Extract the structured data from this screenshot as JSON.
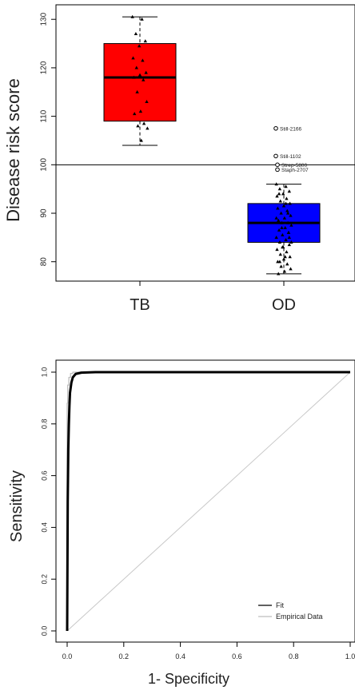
{
  "chart_data": [
    {
      "type": "box",
      "ylabel": "Disease risk score",
      "categories": [
        "TB",
        "OD"
      ],
      "yticks": [
        80,
        90,
        100,
        110,
        120,
        130
      ],
      "ylim": [
        76,
        133
      ],
      "reference_line": 100,
      "boxes": [
        {
          "category": "TB",
          "color": "#ff0000",
          "min": 104,
          "q1": 109,
          "median": 118,
          "q3": 125,
          "max": 130.5,
          "points": [
            130.5,
            130,
            127,
            125.5,
            124.5,
            122,
            121.5,
            120,
            119,
            118.5,
            118,
            117.5,
            115,
            113,
            111,
            110.5,
            108.5,
            108,
            107.5,
            105
          ]
        },
        {
          "category": "OD",
          "color": "#0000ff",
          "min": 77.5,
          "q1": 84,
          "median": 88,
          "q3": 92,
          "max": 96,
          "points": [
            96,
            95.5,
            95,
            94.5,
            94,
            93.5,
            93,
            92.5,
            92,
            91.5,
            91,
            90.5,
            90,
            89.5,
            89,
            88.5,
            88,
            88,
            87.5,
            87,
            86.5,
            86,
            85.5,
            85,
            84.5,
            84,
            83.5,
            83,
            82.5,
            82,
            81.5,
            81,
            80.5,
            80,
            79.5,
            79,
            78.5,
            78,
            77.5,
            90,
            87,
            84,
            81,
            94,
            86,
            83,
            89,
            92,
            80,
            85
          ]
        }
      ],
      "outliers": [
        {
          "label": "Still-2166",
          "y": 107.5
        },
        {
          "label": "Still-1102",
          "y": 101.8
        },
        {
          "label": "Strep-5800",
          "y": 100
        },
        {
          "label": "Staph-2707",
          "y": 99
        }
      ]
    },
    {
      "type": "line",
      "xlabel": "1- Specificity",
      "ylabel": "Sensitivity",
      "xlim": [
        0,
        1
      ],
      "ylim": [
        0,
        1
      ],
      "xticks": [
        "0.0",
        "0.2",
        "0.4",
        "0.6",
        "0.8",
        "1.0"
      ],
      "yticks": [
        "0.0",
        "0.2",
        "0.4",
        "0.6",
        "0.8",
        "1.0"
      ],
      "series": [
        {
          "name": "Fit",
          "color": "#000000",
          "x": [
            0,
            0.002,
            0.004,
            0.006,
            0.008,
            0.01,
            0.015,
            0.02,
            0.03,
            0.05,
            0.1,
            0.3,
            0.6,
            1.0
          ],
          "y": [
            0,
            0.5,
            0.7,
            0.8,
            0.87,
            0.92,
            0.96,
            0.98,
            0.993,
            0.998,
            1,
            1,
            1,
            1
          ]
        },
        {
          "name": "Empirical Data",
          "color": "#bdbdbd",
          "x": [
            0,
            0,
            0.002,
            0.002,
            0.006,
            0.006,
            0.012,
            0.012,
            0.02,
            0.02,
            1.0
          ],
          "y": [
            0,
            0.88,
            0.88,
            0.95,
            0.95,
            0.98,
            0.98,
            0.995,
            0.995,
            1,
            1
          ]
        },
        {
          "name": "diagonal",
          "color": "#c8c8c8",
          "x": [
            0,
            1
          ],
          "y": [
            0,
            1
          ]
        }
      ],
      "legend_position": "bottom-right"
    }
  ]
}
